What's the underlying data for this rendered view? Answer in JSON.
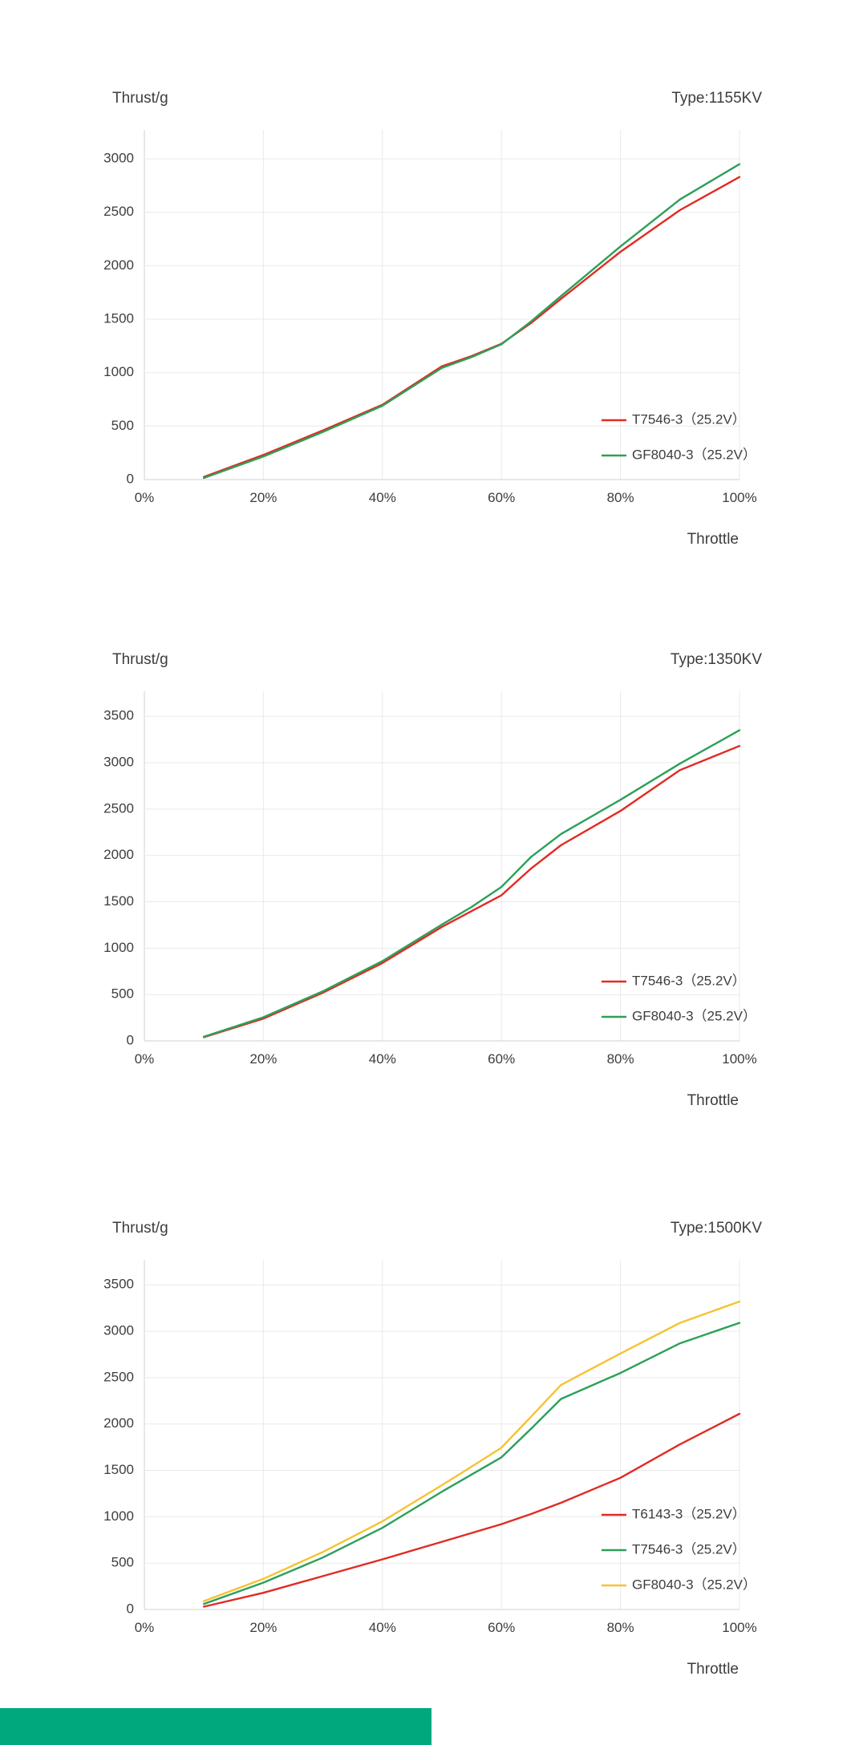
{
  "page": {
    "background": "#ffffff",
    "text_color": "#3d3d3d"
  },
  "footer_bar": {
    "color": "#00A87E"
  },
  "chart_data": [
    {
      "type": "line",
      "title": "Type:1155KV",
      "ylabel": "Thrust/g",
      "xlabel": "Throttle",
      "grid": true,
      "legend_position": "inside-right-bottom",
      "x_ticks": [
        "0%",
        "20%",
        "40%",
        "60%",
        "80%",
        "100%"
      ],
      "x_tick_values": [
        0,
        20,
        40,
        60,
        80,
        100
      ],
      "y_ticks": [
        0,
        500,
        1000,
        1500,
        2000,
        2500,
        3000
      ],
      "ylim": [
        0,
        3270
      ],
      "x": [
        10,
        20,
        30,
        40,
        50,
        55,
        60,
        65,
        70,
        80,
        90,
        100
      ],
      "series": [
        {
          "name": "T7546-3（25.2V）",
          "color": "#E12B23",
          "values": [
            25,
            230,
            460,
            700,
            1060,
            1155,
            1270,
            1465,
            1690,
            2130,
            2520,
            2830
          ]
        },
        {
          "name": "GF8040-3（25.2V）",
          "color": "#2CA05A",
          "values": [
            15,
            215,
            445,
            690,
            1045,
            1145,
            1265,
            1480,
            1715,
            2180,
            2620,
            2950
          ]
        }
      ]
    },
    {
      "type": "line",
      "title": "Type:1350KV",
      "ylabel": "Thrust/g",
      "xlabel": "Throttle",
      "grid": true,
      "legend_position": "inside-right-bottom",
      "x_ticks": [
        "0%",
        "20%",
        "40%",
        "60%",
        "80%",
        "100%"
      ],
      "x_tick_values": [
        0,
        20,
        40,
        60,
        80,
        100
      ],
      "y_ticks": [
        0,
        500,
        1000,
        1500,
        2000,
        2500,
        3000,
        3500
      ],
      "ylim": [
        0,
        3770
      ],
      "x": [
        10,
        20,
        30,
        40,
        50,
        55,
        60,
        65,
        70,
        80,
        90,
        100
      ],
      "series": [
        {
          "name": "T7546-3（25.2V）",
          "color": "#E12B23",
          "values": [
            40,
            240,
            520,
            840,
            1230,
            1400,
            1570,
            1860,
            2110,
            2480,
            2920,
            3180
          ]
        },
        {
          "name": "GF8040-3（25.2V）",
          "color": "#2CA05A",
          "values": [
            45,
            255,
            535,
            860,
            1255,
            1445,
            1660,
            1985,
            2230,
            2600,
            2990,
            3350
          ]
        }
      ]
    },
    {
      "type": "line",
      "title": "Type:1500KV",
      "ylabel": "Thrust/g",
      "xlabel": "Throttle",
      "grid": true,
      "legend_position": "inside-right-bottom",
      "x_ticks": [
        "0%",
        "20%",
        "40%",
        "60%",
        "80%",
        "100%"
      ],
      "x_tick_values": [
        0,
        20,
        40,
        60,
        80,
        100
      ],
      "y_ticks": [
        0,
        500,
        1000,
        1500,
        2000,
        2500,
        3000,
        3500
      ],
      "ylim": [
        0,
        3770
      ],
      "x": [
        10,
        20,
        30,
        40,
        50,
        55,
        60,
        65,
        70,
        80,
        90,
        100
      ],
      "series": [
        {
          "name": "T6143-3（25.2V）",
          "color": "#E12B23",
          "values": [
            30,
            180,
            360,
            540,
            730,
            825,
            920,
            1030,
            1150,
            1420,
            1780,
            2110
          ]
        },
        {
          "name": "T7546-3（25.2V）",
          "color": "#2CA05A",
          "values": [
            60,
            290,
            560,
            880,
            1270,
            1455,
            1640,
            1950,
            2270,
            2550,
            2870,
            3090
          ]
        },
        {
          "name": "GF8040-3（25.2V）",
          "color": "#F5C331",
          "values": [
            90,
            330,
            620,
            950,
            1340,
            1540,
            1745,
            2080,
            2420,
            2760,
            3090,
            3320
          ]
        }
      ]
    }
  ]
}
